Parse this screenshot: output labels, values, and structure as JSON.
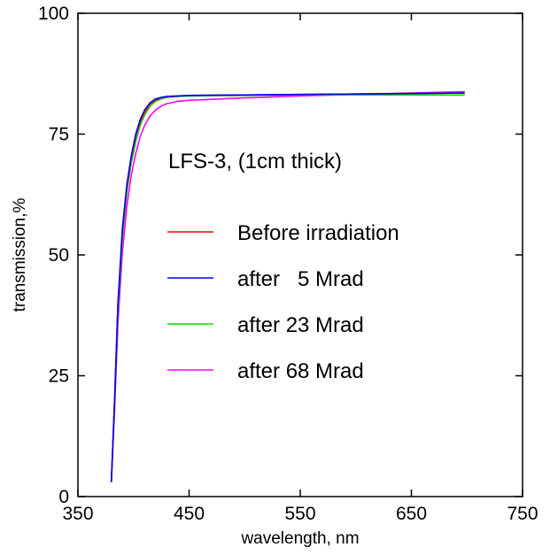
{
  "chart_data": {
    "type": "line",
    "title": "",
    "xlabel": "wavelength, nm",
    "ylabel": "transmission,%",
    "xlim": [
      350,
      750
    ],
    "ylim": [
      0,
      100
    ],
    "xticks": [
      "350",
      "450",
      "550",
      "650",
      "750"
    ],
    "yticks": [
      "0",
      "25",
      "50",
      "75",
      "100"
    ],
    "xtick_values": [
      350,
      450,
      550,
      650,
      750
    ],
    "ytick_values": [
      0,
      25,
      50,
      75,
      100
    ],
    "grid": false,
    "annotation": "LFS-3, (1cm thick)",
    "legend_position": "right-center",
    "series": [
      {
        "name": "Before irradiation",
        "color": "#ff0000",
        "x": [
          380,
          383,
          386,
          390,
          394,
          398,
          402,
          406,
          410,
          415,
          420,
          425,
          430,
          440,
          450,
          500,
          550,
          600,
          650,
          698
        ],
        "y": [
          3,
          20,
          40,
          55,
          64,
          70,
          74.5,
          77.5,
          79.5,
          81.2,
          82.1,
          82.5,
          82.7,
          82.9,
          83.0,
          83.1,
          83.2,
          83.3,
          83.4,
          83.5
        ]
      },
      {
        "name": "after   5 Mrad",
        "color": "#0000ff",
        "x": [
          380,
          383,
          386,
          390,
          394,
          398,
          402,
          406,
          410,
          415,
          420,
          425,
          430,
          440,
          450,
          500,
          550,
          600,
          650,
          698
        ],
        "y": [
          3,
          20,
          40,
          55.5,
          64.5,
          70.5,
          75,
          78,
          80,
          81.5,
          82.3,
          82.6,
          82.8,
          82.9,
          83.0,
          83.1,
          83.2,
          83.3,
          83.4,
          83.5
        ]
      },
      {
        "name": "after 23 Mrad",
        "color": "#00dd00",
        "x": [
          380,
          383,
          386,
          390,
          394,
          398,
          402,
          406,
          410,
          415,
          420,
          425,
          430,
          440,
          450,
          500,
          550,
          600,
          650,
          698
        ],
        "y": [
          3,
          19,
          38.5,
          53.5,
          63,
          69,
          73.5,
          76.8,
          79,
          80.8,
          81.8,
          82.3,
          82.6,
          82.8,
          82.9,
          83.0,
          83.1,
          83.1,
          83.1,
          83.1
        ]
      },
      {
        "name": "after 68 Mrad",
        "color": "#ff00ff",
        "x": [
          380,
          383,
          386,
          390,
          394,
          398,
          402,
          406,
          410,
          415,
          420,
          425,
          430,
          440,
          450,
          500,
          550,
          600,
          650,
          698
        ],
        "y": [
          3,
          18,
          36,
          50.5,
          60,
          66.5,
          71,
          74.5,
          76.8,
          78.8,
          80.0,
          80.8,
          81.3,
          81.8,
          82.0,
          82.5,
          82.9,
          83.2,
          83.5,
          83.8
        ]
      }
    ]
  }
}
